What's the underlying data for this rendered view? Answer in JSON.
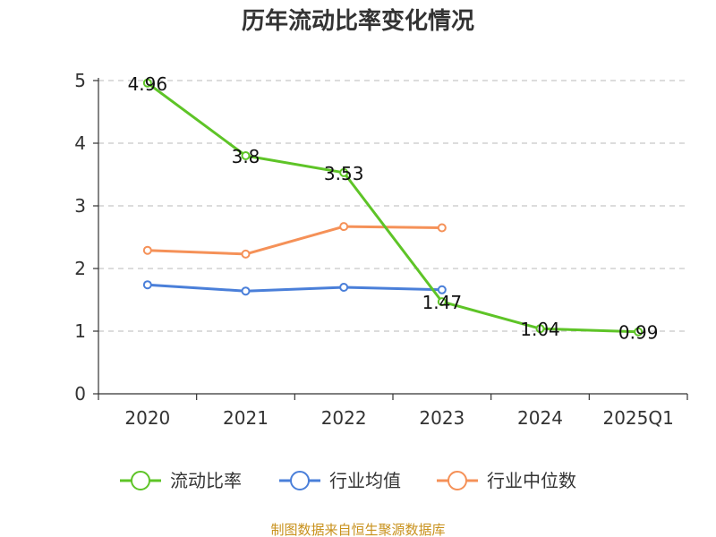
{
  "chart_data": {
    "type": "line",
    "title": "历年流动比率变化情况",
    "categories": [
      "2020",
      "2021",
      "2022",
      "2023",
      "2024",
      "2025Q1"
    ],
    "ylim": [
      0,
      5
    ],
    "yticks": [
      0,
      1,
      2,
      3,
      4,
      5
    ],
    "grid": true,
    "legend_position": "bottom",
    "series": [
      {
        "name": "流动比率",
        "color": "#5ec427",
        "values": [
          4.96,
          3.8,
          3.53,
          1.47,
          1.04,
          0.99
        ],
        "labels": [
          "4.96",
          "3.8",
          "3.53",
          "1.47",
          "1.04",
          "0.99"
        ]
      },
      {
        "name": "行业均值",
        "color": "#4a7fd9",
        "values": [
          1.74,
          1.64,
          1.7,
          1.66,
          null,
          null
        ]
      },
      {
        "name": "行业中位数",
        "color": "#f59158",
        "values": [
          2.29,
          2.23,
          2.67,
          2.65,
          null,
          null
        ]
      }
    ],
    "source": "制图数据来自恒生聚源数据库"
  }
}
